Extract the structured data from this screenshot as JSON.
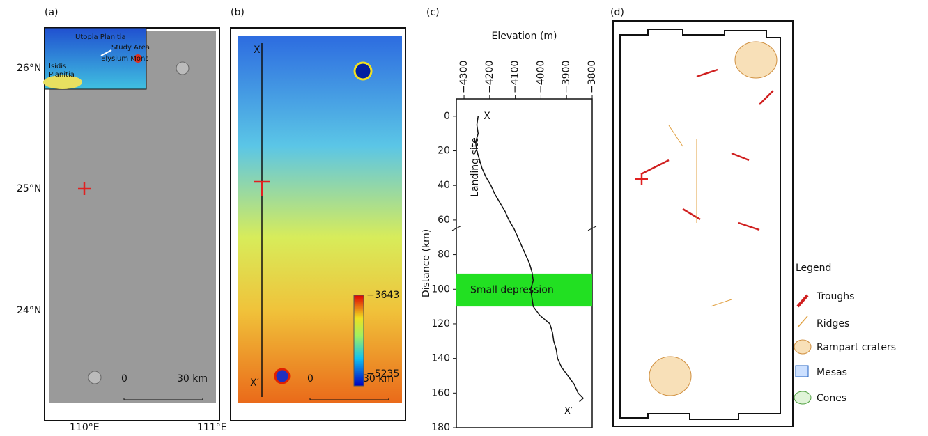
{
  "panels": {
    "a": {
      "label": "(a)",
      "lat_labels": [
        "26°N",
        "25°N",
        "24°N"
      ],
      "lon_labels": [
        "110°E",
        "111°E"
      ],
      "inset": [
        "Utopia Planitia",
        "Study Area",
        "Isidis",
        "Planitia",
        "Elysium Mons"
      ],
      "scale": [
        "0",
        "30 km"
      ]
    },
    "b": {
      "label": "(b)",
      "profile_ends": [
        "X",
        "X′"
      ],
      "colorbar": [
        "−3643",
        "−5235"
      ],
      "scale": [
        "0",
        "30 km"
      ]
    },
    "c": {
      "label": "(c)"
    },
    "d": {
      "label": "(d)",
      "legend_title": "Legend",
      "legend": [
        "Troughs",
        "Ridges",
        "Rampart craters",
        "Mesas",
        "Cones"
      ]
    }
  },
  "chart_data": {
    "type": "line",
    "x_label": "Elevation (m)",
    "y_label": "Distance (km)",
    "xlim": [
      -4330,
      -3800
    ],
    "ylim": [
      -10,
      180
    ],
    "xticks": [
      {
        "value": -4300,
        "label": "−4300"
      },
      {
        "value": -4200,
        "label": "−4200"
      },
      {
        "value": -4100,
        "label": "−4100"
      },
      {
        "value": -4000,
        "label": "−4000"
      },
      {
        "value": -3900,
        "label": "−3900"
      },
      {
        "value": -3800,
        "label": "−3800"
      }
    ],
    "yticks": [
      0,
      20,
      40,
      60,
      80,
      100,
      120,
      140,
      160,
      180
    ],
    "y": [
      0,
      5,
      10,
      15,
      20,
      25,
      30,
      35,
      40,
      45,
      50,
      55,
      60,
      65,
      70,
      75,
      80,
      85,
      90,
      95,
      100,
      105,
      110,
      115,
      120,
      125,
      130,
      135,
      140,
      145,
      150,
      155,
      160,
      163,
      165
    ],
    "x": [
      -4245,
      -4250,
      -4245,
      -4255,
      -4250,
      -4240,
      -4230,
      -4215,
      -4195,
      -4180,
      -4160,
      -4140,
      -4125,
      -4105,
      -4090,
      -4075,
      -4060,
      -4045,
      -4035,
      -4030,
      -4040,
      -4035,
      -4030,
      -4005,
      -3965,
      -3955,
      -3950,
      -3940,
      -3935,
      -3920,
      -3895,
      -3870,
      -3855,
      -3835,
      -3850
    ],
    "color": "#111111",
    "annotations": [
      "X",
      "X′",
      "Landing site",
      "Small depression"
    ],
    "depression_range": [
      91,
      110
    ]
  }
}
